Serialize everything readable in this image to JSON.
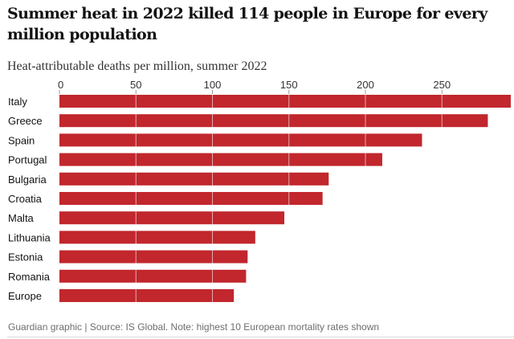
{
  "header": {
    "title": "Summer heat in 2022 killed 114 people in Europe for every million population",
    "subtitle": "Heat-attributable deaths per million, summer 2022"
  },
  "footer": {
    "source": "Guardian graphic | Source: IS Global. Note: highest 10 European mortality rates shown"
  },
  "colors": {
    "bar": "#c1272d",
    "gridline": "#ffffff",
    "text": "#121212"
  },
  "chart_data": {
    "type": "bar",
    "orientation": "horizontal",
    "title": "Summer heat in 2022 killed 114 people in Europe for every million population",
    "subtitle": "Heat-attributable deaths per million, summer 2022",
    "xlabel": "",
    "ylabel": "",
    "xlim": [
      0,
      296
    ],
    "xticks": [
      0,
      50,
      100,
      150,
      200,
      250
    ],
    "xtick_labels": [
      "0",
      "50",
      "100",
      "150",
      "200",
      "250"
    ],
    "grid": true,
    "categories": [
      "Italy",
      "Greece",
      "Spain",
      "Portugal",
      "Bulgaria",
      "Croatia",
      "Malta",
      "Lithuania",
      "Estonia",
      "Romania",
      "Europe"
    ],
    "values": [
      295,
      280,
      237,
      211,
      176,
      172,
      147,
      128,
      123,
      122,
      114
    ],
    "source": "Guardian graphic | Source: IS Global. Note: highest 10 European mortality rates shown"
  }
}
